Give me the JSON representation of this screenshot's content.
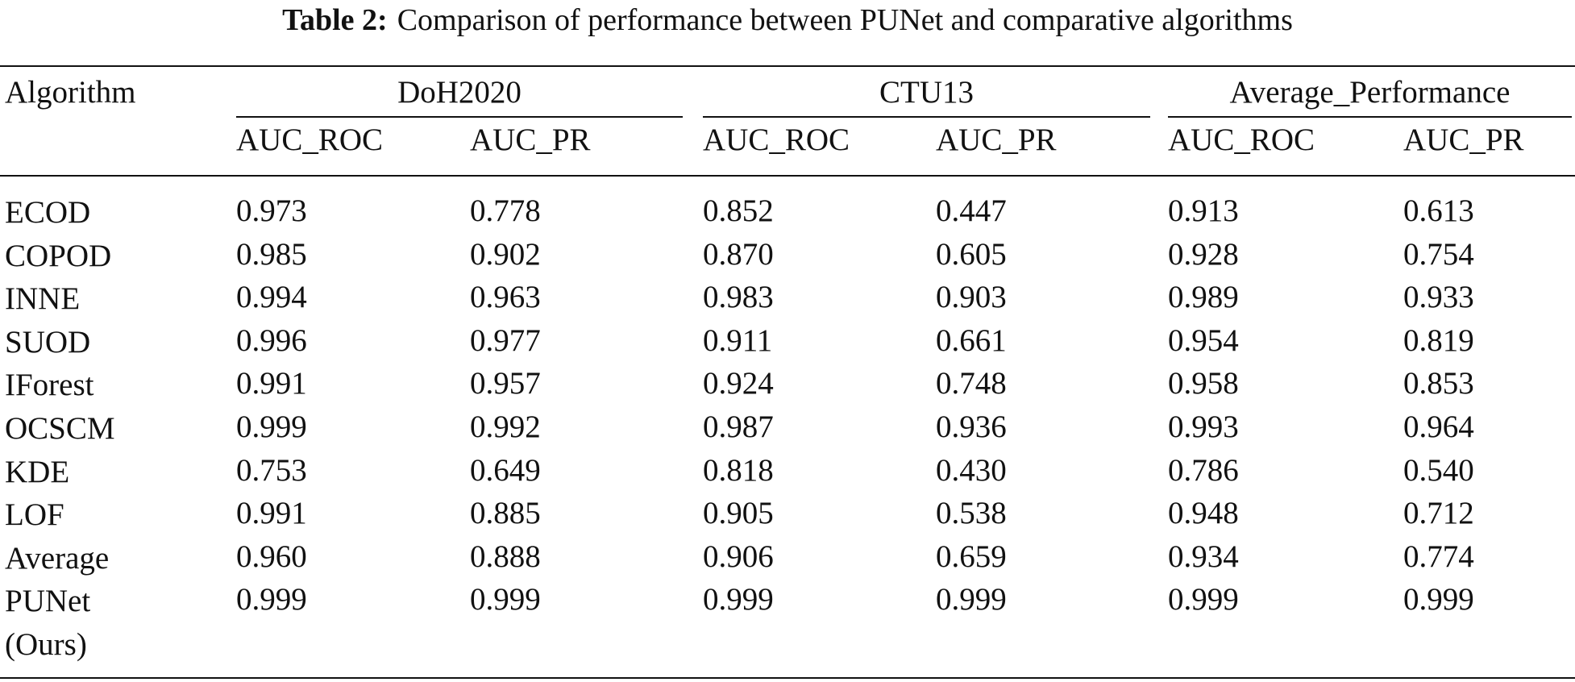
{
  "caption": {
    "label": "Table 2:",
    "text": "Comparison of performance between PUNet and comparative algorithms"
  },
  "table": {
    "corner": "Algorithm",
    "groups": [
      "DoH2020",
      "CTU13",
      "Average_Performance"
    ],
    "subheaders": [
      "AUC_ROC",
      "AUC_PR",
      "AUC_ROC",
      "AUC_PR",
      "AUC_ROC",
      "AUC_PR"
    ],
    "rows": [
      [
        "ECOD",
        "0.973",
        "0.778",
        "0.852",
        "0.447",
        "0.913",
        "0.613"
      ],
      [
        "COPOD",
        "0.985",
        "0.902",
        "0.870",
        "0.605",
        "0.928",
        "0.754"
      ],
      [
        "INNE",
        "0.994",
        "0.963",
        "0.983",
        "0.903",
        "0.989",
        "0.933"
      ],
      [
        "SUOD",
        "0.996",
        "0.977",
        "0.911",
        "0.661",
        "0.954",
        "0.819"
      ],
      [
        "IForest",
        "0.991",
        "0.957",
        "0.924",
        "0.748",
        "0.958",
        "0.853"
      ],
      [
        "OCSCM",
        "0.999",
        "0.992",
        "0.987",
        "0.936",
        "0.993",
        "0.964"
      ],
      [
        "KDE",
        "0.753",
        "0.649",
        "0.818",
        "0.430",
        "0.786",
        "0.540"
      ],
      [
        "LOF",
        "0.991",
        "0.885",
        "0.905",
        "0.538",
        "0.948",
        "0.712"
      ],
      [
        "Average",
        "0.960",
        "0.888",
        "0.906",
        "0.659",
        "0.934",
        "0.774"
      ],
      [
        "PUNet (Ours)",
        "0.999",
        "0.999",
        "0.999",
        "0.999",
        "0.999",
        "0.999"
      ]
    ]
  }
}
